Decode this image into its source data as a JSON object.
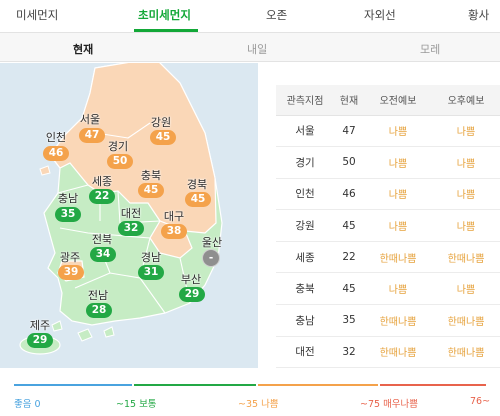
{
  "top_tabs": [
    "미세먼지",
    "초미세먼지",
    "오존",
    "자외선",
    "황사"
  ],
  "sub_tabs": [
    "현재",
    "내일",
    "모레"
  ],
  "colors": {
    "accent": "#13a838",
    "good": "#4aa3df",
    "normal": "#23a845",
    "bad": "#f4a24b",
    "very_bad": "#e8634c",
    "normal_region": "#c6ecc4",
    "bad_region": "#fad7b7"
  },
  "regions": [
    {
      "name": "서울",
      "value": "47",
      "level": "bad"
    },
    {
      "name": "강원",
      "value": "45",
      "level": "bad"
    },
    {
      "name": "인천",
      "value": "46",
      "level": "bad"
    },
    {
      "name": "경기",
      "value": "50",
      "level": "bad"
    },
    {
      "name": "충북",
      "value": "45",
      "level": "bad"
    },
    {
      "name": "세종",
      "value": "22",
      "level": "normal"
    },
    {
      "name": "경북",
      "value": "45",
      "level": "bad"
    },
    {
      "name": "충남",
      "value": "35",
      "level": "normal"
    },
    {
      "name": "대전",
      "value": "32",
      "level": "normal"
    },
    {
      "name": "대구",
      "value": "38",
      "level": "bad"
    },
    {
      "name": "울산",
      "value": "-",
      "level": "none"
    },
    {
      "name": "전북",
      "value": "34",
      "level": "normal"
    },
    {
      "name": "경남",
      "value": "31",
      "level": "normal"
    },
    {
      "name": "광주",
      "value": "39",
      "level": "bad"
    },
    {
      "name": "부산",
      "value": "29",
      "level": "normal"
    },
    {
      "name": "전남",
      "value": "28",
      "level": "normal"
    },
    {
      "name": "제주",
      "value": "29",
      "level": "normal"
    }
  ],
  "table": {
    "headers": [
      "관측지점",
      "현재",
      "오전예보",
      "오후예보"
    ],
    "rows": [
      [
        "서울",
        "47",
        "나쁨",
        "나쁨"
      ],
      [
        "경기",
        "50",
        "나쁨",
        "나쁨"
      ],
      [
        "인천",
        "46",
        "나쁨",
        "나쁨"
      ],
      [
        "강원",
        "45",
        "나쁨",
        "나쁨"
      ],
      [
        "세종",
        "22",
        "한때나쁨",
        "한때나쁨"
      ],
      [
        "충북",
        "45",
        "나쁨",
        "나쁨"
      ],
      [
        "충남",
        "35",
        "한때나쁨",
        "한때나쁨"
      ],
      [
        "대전",
        "32",
        "한때나쁨",
        "한때나쁨"
      ]
    ]
  },
  "legend": [
    {
      "range": "좋음 0",
      "color": "#4aa3df"
    },
    {
      "range": "~15 보통",
      "color": "#23a845"
    },
    {
      "range": "~35 나쁨",
      "color": "#f4a24b"
    },
    {
      "range": "~75 매우나쁨",
      "color": "#e8634c"
    },
    {
      "range": "76~",
      "color": "#e8634c"
    }
  ]
}
